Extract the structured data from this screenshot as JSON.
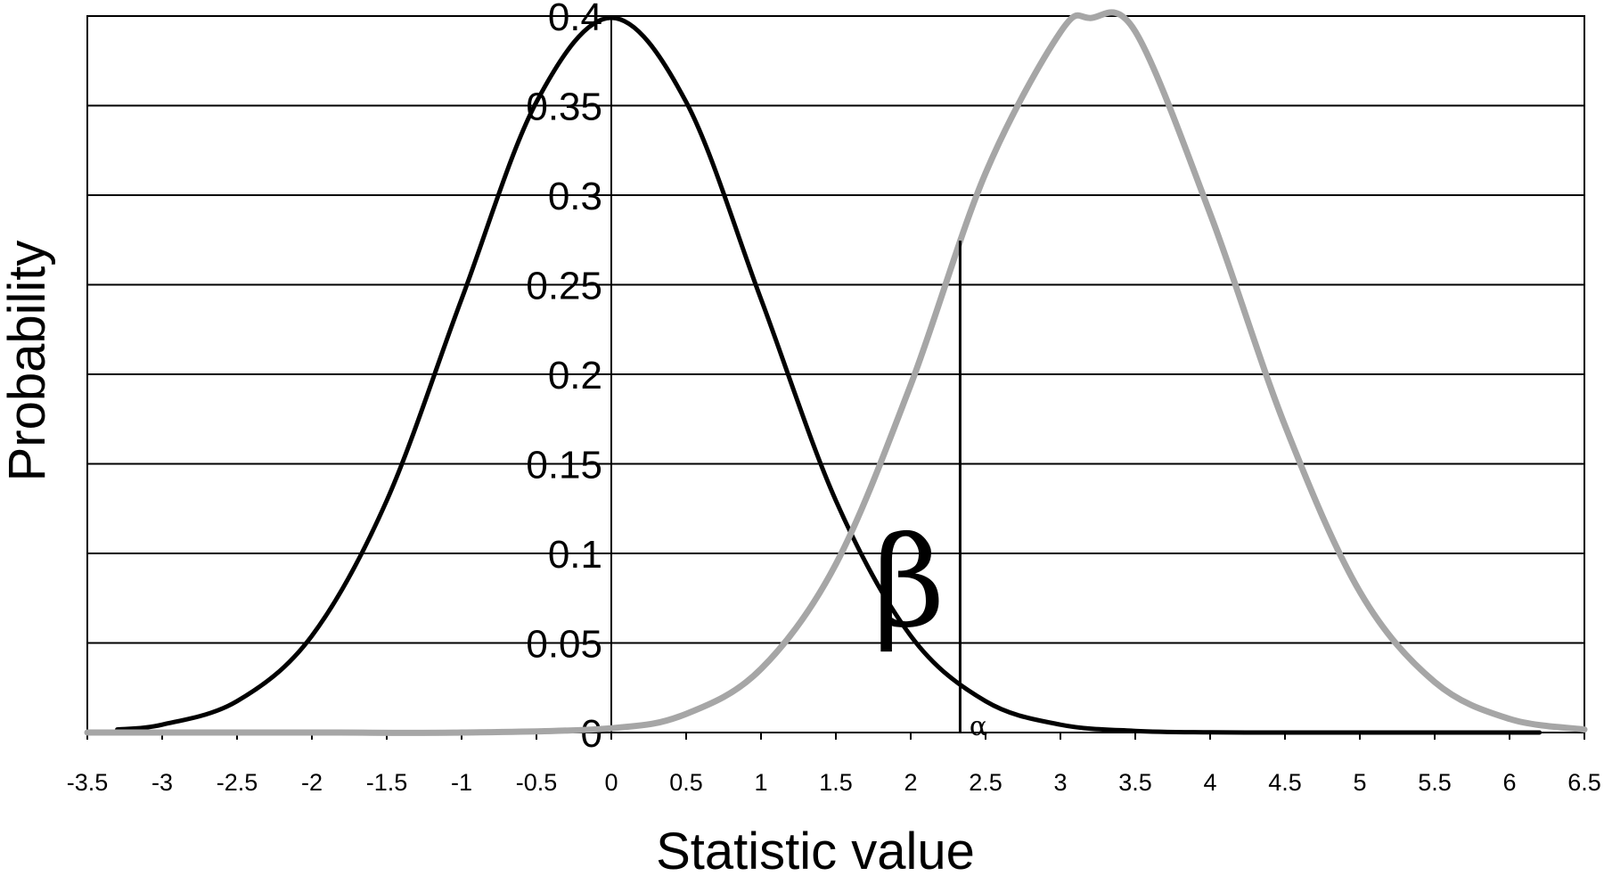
{
  "chart_data": {
    "type": "line",
    "xlabel": "Statistic value",
    "ylabel": "Probability",
    "xlim": [
      -3.5,
      6.5
    ],
    "ylim": [
      0,
      0.4
    ],
    "x_ticks": [
      "-3.5",
      "-3",
      "-2.5",
      "-2",
      "-1.5",
      "-1",
      "-0.5",
      "0",
      "0.5",
      "1",
      "1.5",
      "2",
      "2.5",
      "3",
      "3.5",
      "4",
      "4.5",
      "5",
      "5.5",
      "6",
      "6.5"
    ],
    "y_ticks": [
      "0",
      "0.05",
      "0.1",
      "0.15",
      "0.2",
      "0.25",
      "0.3",
      "0.35",
      "0.4"
    ],
    "grid": "horizontal",
    "series": [
      {
        "color": "#000000",
        "x": [
          -3.3,
          -3,
          -2.5,
          -2,
          -1.5,
          -1,
          -0.5,
          0,
          0.5,
          1,
          1.5,
          2,
          2.5,
          3,
          3.5,
          4,
          4.5,
          5,
          5.5,
          6,
          6.2
        ],
        "values": [
          0.0017,
          0.0044,
          0.0175,
          0.054,
          0.1295,
          0.242,
          0.352,
          0.399,
          0.352,
          0.242,
          0.1295,
          0.054,
          0.0175,
          0.0044,
          0.0009,
          0.0001,
          0,
          0,
          0,
          0,
          0
        ]
      },
      {
        "color": "#a6a6a6",
        "x": [
          -3.5,
          -2,
          -1,
          0,
          0.5,
          1,
          1.5,
          2,
          2.5,
          3,
          3.2,
          3.5,
          4,
          4.5,
          5,
          5.5,
          6,
          6.5
        ],
        "values": [
          0,
          0,
          0,
          0.0024,
          0.0104,
          0.0355,
          0.094,
          0.1941,
          0.3123,
          0.391,
          0.3989,
          0.3914,
          0.2897,
          0.1714,
          0.0786,
          0.0282,
          0.0076,
          0.0017
        ]
      }
    ],
    "critical_line_x": 2.33,
    "annotations": {
      "beta": "β",
      "alpha": "α"
    }
  }
}
